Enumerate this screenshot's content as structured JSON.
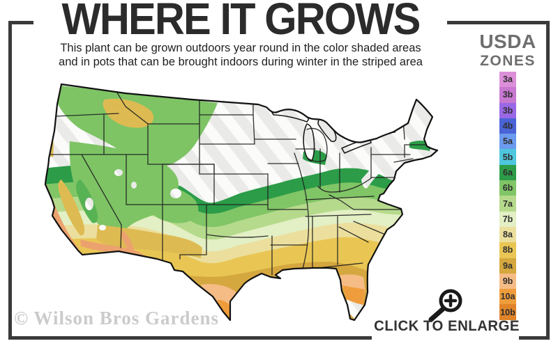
{
  "header": {
    "title": "WHERE IT GROWS",
    "subtitle_line1": "This plant can be grown outdoors year round in the color shaded areas",
    "subtitle_line2": "and in pots that can be brought indoors during winter in the striped area"
  },
  "legend": {
    "title_line1": "USDA",
    "title_line2": "ZONES",
    "zones": [
      {
        "label": "3a",
        "color": "#dc8fd8"
      },
      {
        "label": "3b",
        "color": "#c878d0"
      },
      {
        "label": "3b",
        "color": "#9a68e6"
      },
      {
        "label": "4b",
        "color": "#4a63d6"
      },
      {
        "label": "5a",
        "color": "#6b9aee"
      },
      {
        "label": "5b",
        "color": "#4fc6de"
      },
      {
        "label": "6a",
        "color": "#2c9c48"
      },
      {
        "label": "6b",
        "color": "#80c566"
      },
      {
        "label": "7a",
        "color": "#b5da8c"
      },
      {
        "label": "7b",
        "color": "#e3efc4"
      },
      {
        "label": "8a",
        "color": "#ecdf9d"
      },
      {
        "label": "8b",
        "color": "#e9c654"
      },
      {
        "label": "9a",
        "color": "#d5a73f"
      },
      {
        "label": "9b",
        "color": "#f5bc85"
      },
      {
        "label": "10a",
        "color": "#ef9d3c"
      },
      {
        "label": "10b",
        "color": "#e08429"
      }
    ]
  },
  "footer": {
    "watermark": "© Wilson Bros Gardens",
    "enlarge_label": "CLICK TO ENLARGE",
    "magnifier_icon": "magnifying-glass-plus"
  },
  "colors": {
    "frame": "#3a3a3a",
    "title_text": "#2b2b2b",
    "legend_title_text": "#6e6e6e",
    "watermark_text": "#cbcbcb"
  }
}
